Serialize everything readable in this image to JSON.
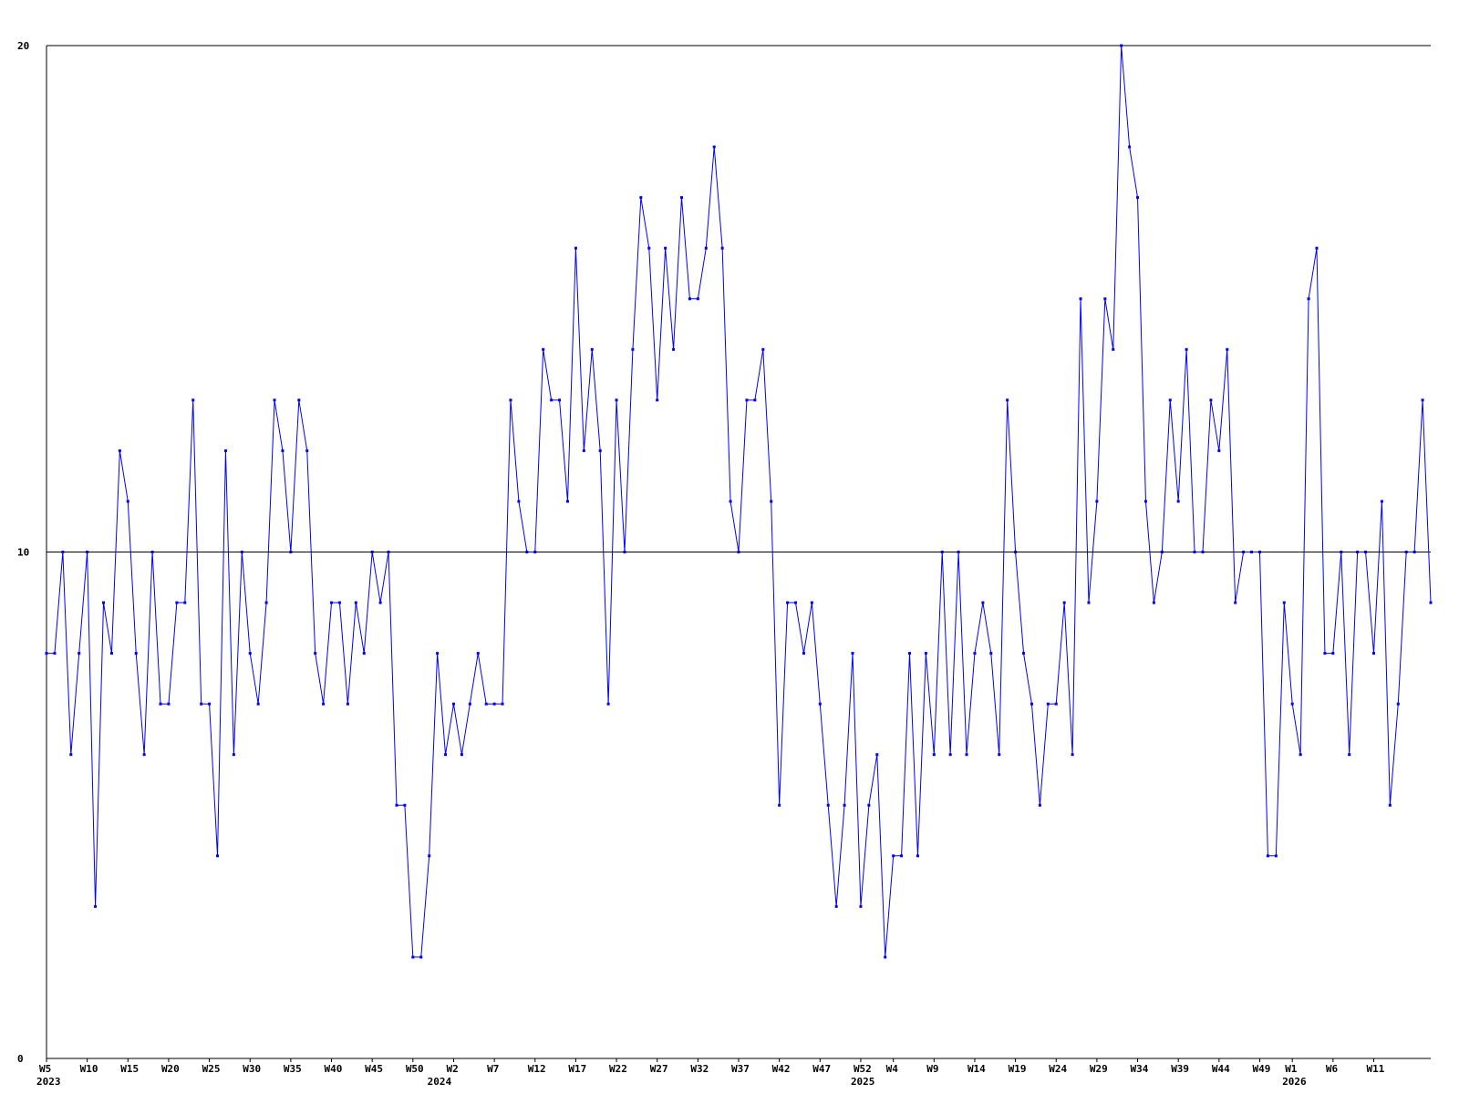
{
  "chart_data": {
    "type": "line",
    "title": "",
    "xlabel": "",
    "ylabel": "",
    "ylim": [
      0,
      20
    ],
    "y_ticks": [
      "0",
      "10",
      "20"
    ],
    "grid": "horizontal line at 10 only",
    "colors": {
      "series": "#0000ff",
      "axis": "#000000"
    },
    "x_tick_labels": [
      "W5",
      "W10",
      "W15",
      "W20",
      "W25",
      "W30",
      "W35",
      "W40",
      "W45",
      "W50",
      "W2",
      "W7",
      "W12",
      "W17",
      "W22",
      "W27",
      "W32",
      "W37",
      "W42",
      "W47",
      "W52",
      "W4",
      "W9",
      "W14",
      "W19",
      "W24",
      "W29",
      "W34",
      "W39",
      "W44",
      "W49",
      "W1",
      "W6",
      "W11"
    ],
    "x_tick_index": [
      0,
      5,
      10,
      15,
      20,
      25,
      30,
      35,
      40,
      45,
      50,
      55,
      60,
      65,
      70,
      75,
      80,
      85,
      90,
      95,
      100,
      104,
      109,
      114,
      119,
      124,
      129,
      134,
      139,
      144,
      149,
      153,
      158,
      163
    ],
    "year_labels": [
      "2023",
      "2024",
      "2025",
      "2026"
    ],
    "year_index": [
      0,
      48,
      100,
      153
    ],
    "series": [
      {
        "values": [
          8,
          8,
          10,
          6,
          8,
          10,
          3,
          9,
          8,
          12,
          11,
          8,
          6,
          10,
          7,
          7,
          9,
          9,
          13,
          7,
          7,
          4,
          12,
          6,
          10,
          8,
          7,
          9,
          13,
          12,
          10,
          13,
          12,
          8,
          7,
          9,
          9,
          7,
          9,
          8,
          10,
          9,
          10,
          5,
          5,
          2,
          2,
          4,
          8,
          6,
          7,
          6,
          7,
          8,
          7,
          7,
          7,
          13,
          11,
          10,
          10,
          14,
          13,
          13,
          11,
          16,
          12,
          14,
          12,
          7,
          13,
          10,
          14,
          17,
          16,
          13,
          16,
          14,
          17,
          15,
          15,
          16,
          18,
          16,
          11,
          10,
          13,
          13,
          14,
          11,
          5,
          9,
          9,
          8,
          9,
          7,
          5,
          3,
          5,
          8,
          3,
          5,
          6,
          2,
          4,
          4,
          8,
          4,
          8,
          6,
          10,
          6,
          10,
          6,
          8,
          9,
          8,
          6,
          13,
          10,
          8,
          7,
          5,
          7,
          7,
          9,
          6,
          15,
          9,
          11,
          15,
          14,
          20,
          18,
          17,
          11,
          9,
          10,
          13,
          11,
          14,
          10,
          10,
          13,
          12,
          14,
          9,
          10,
          10,
          10,
          4,
          4,
          9,
          7,
          6,
          15,
          16,
          8,
          8,
          10,
          6,
          10,
          10,
          8,
          11,
          5,
          7,
          10,
          10,
          13,
          9
        ]
      }
    ]
  }
}
